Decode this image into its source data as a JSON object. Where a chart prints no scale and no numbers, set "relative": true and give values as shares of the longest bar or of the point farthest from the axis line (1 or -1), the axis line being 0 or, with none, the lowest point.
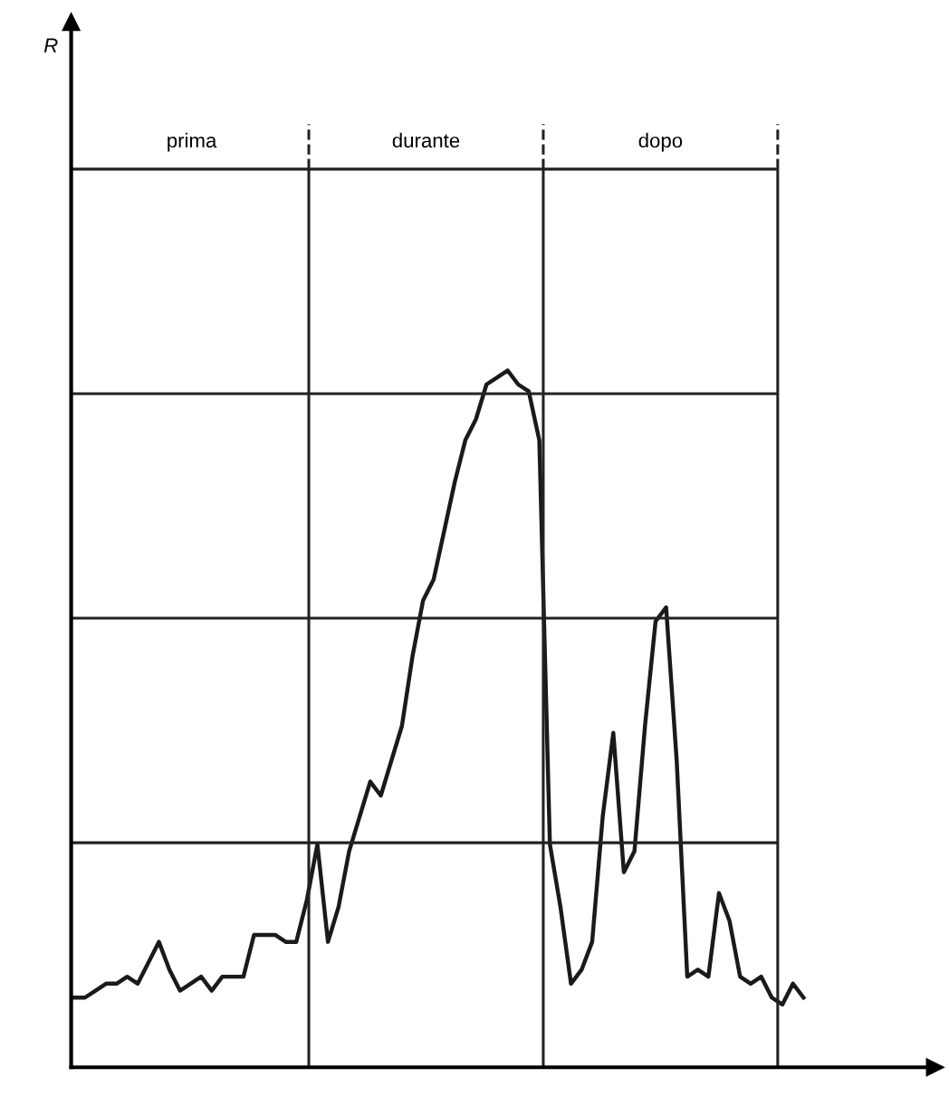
{
  "chart_data": {
    "type": "line",
    "relative": true,
    "grid": true,
    "marker": "none",
    "line_style": "solid",
    "categories": [
      null,
      null,
      null,
      null,
      null,
      null,
      null,
      null,
      null,
      null,
      null,
      null,
      null,
      null,
      null,
      null,
      null,
      null,
      null,
      null,
      null,
      null,
      null,
      null,
      null,
      null,
      null,
      null,
      null,
      null,
      null,
      null,
      null,
      null,
      null,
      null,
      null,
      null,
      null,
      null,
      null,
      null,
      null,
      null,
      null,
      null,
      null,
      null,
      null,
      null,
      null,
      null,
      null,
      null,
      null,
      null,
      null,
      null,
      null,
      null,
      null,
      null,
      null,
      null,
      null,
      null,
      null,
      null,
      null,
      null
    ],
    "annotations": [
      "R",
      "prima",
      "durante",
      "dopo"
    ],
    "series": [
      {
        "color": "#1a1a1a",
        "values": [
          0.1,
          0.1,
          0.11,
          0.12,
          0.12,
          0.13,
          0.12,
          0.15,
          0.18,
          0.14,
          0.11,
          0.12,
          0.13,
          0.11,
          0.13,
          0.13,
          0.13,
          0.19,
          0.19,
          0.19,
          0.18,
          0.18,
          0.24,
          0.32,
          0.18,
          0.23,
          0.31,
          0.36,
          0.41,
          0.39,
          0.44,
          0.49,
          0.59,
          0.67,
          0.7,
          0.77,
          0.84,
          0.9,
          0.93,
          0.98,
          0.99,
          1,
          0.98,
          0.97,
          0.9,
          0.32,
          0.23,
          0.12,
          0.14,
          0.18,
          0.36,
          0.48,
          0.28,
          0.31,
          0.49,
          0.64,
          0.66,
          0.44,
          0.13,
          0.14,
          0.13,
          0.25,
          0.21,
          0.13,
          0.12,
          0.13,
          0.1,
          0.09,
          0.12,
          0.1
        ]
      }
    ]
  }
}
